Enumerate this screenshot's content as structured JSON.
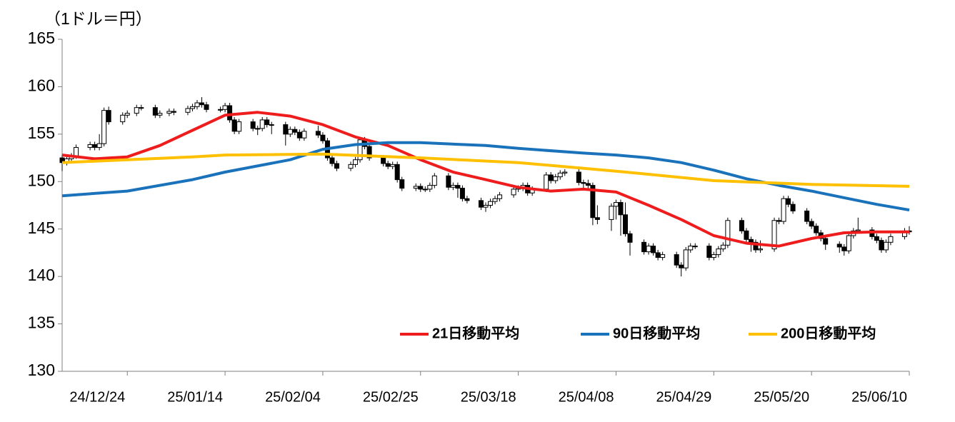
{
  "chart_data": {
    "type": "candlestick",
    "y_label": "（1ドル＝円）",
    "x": [
      "24/12/10",
      "24/12/11",
      "24/12/12",
      "24/12/13",
      "24/12/16",
      "24/12/17",
      "24/12/18",
      "24/12/19",
      "24/12/20",
      "24/12/23",
      "24/12/24",
      "24/12/26",
      "24/12/27",
      "24/12/30",
      "24/12/31",
      "25/01/02",
      "25/01/03",
      "25/01/06",
      "25/01/07",
      "25/01/08",
      "25/01/09",
      "25/01/10",
      "25/01/13",
      "25/01/14",
      "25/01/15",
      "25/01/16",
      "25/01/17",
      "25/01/20",
      "25/01/21",
      "25/01/22",
      "25/01/23",
      "25/01/24",
      "25/01/27",
      "25/01/28",
      "25/01/29",
      "25/01/30",
      "25/01/31",
      "25/02/03",
      "25/02/04",
      "25/02/05",
      "25/02/06",
      "25/02/07",
      "25/02/10",
      "25/02/11",
      "25/02/12",
      "25/02/13",
      "25/02/14",
      "25/02/17",
      "25/02/18",
      "25/02/19",
      "25/02/20",
      "25/02/21",
      "25/02/24",
      "25/02/25",
      "25/02/26",
      "25/02/27",
      "25/02/28",
      "25/03/03",
      "25/03/04",
      "25/03/05",
      "25/03/06",
      "25/03/07",
      "25/03/10",
      "25/03/11",
      "25/03/12",
      "25/03/13",
      "25/03/14",
      "25/03/17",
      "25/03/18",
      "25/03/19",
      "25/03/20",
      "25/03/21",
      "25/03/24",
      "25/03/25",
      "25/03/26",
      "25/03/27",
      "25/03/28",
      "25/03/31",
      "25/04/01",
      "25/04/02",
      "25/04/03",
      "25/04/04",
      "25/04/07",
      "25/04/08",
      "25/04/09",
      "25/04/10",
      "25/04/11",
      "25/04/14",
      "25/04/15",
      "25/04/16",
      "25/04/17",
      "25/04/18",
      "25/04/21",
      "25/04/22",
      "25/04/23",
      "25/04/24",
      "25/04/25",
      "25/04/28",
      "25/04/29",
      "25/04/30",
      "25/05/01",
      "25/05/02",
      "25/05/05",
      "25/05/06",
      "25/05/07",
      "25/05/08",
      "25/05/09",
      "25/05/12",
      "25/05/13",
      "25/05/14",
      "25/05/15",
      "25/05/16",
      "25/05/19",
      "25/05/20",
      "25/05/21",
      "25/05/22",
      "25/05/23",
      "25/05/26",
      "25/05/27",
      "25/05/28",
      "25/05/29",
      "25/05/30",
      "25/06/02",
      "25/06/03",
      "25/06/04",
      "25/06/05",
      "25/06/06",
      "25/06/09",
      "25/06/10"
    ],
    "open": [
      152.5,
      152.0,
      152.4,
      152.7,
      153.6,
      153.9,
      153.6,
      154.0,
      157.5,
      156.3,
      157.0,
      157.2,
      157.8,
      157.8,
      157.0,
      157.2,
      157.4,
      157.3,
      157.7,
      157.9,
      158.3,
      158.1,
      157.6,
      157.6,
      158.0,
      156.5,
      155.3,
      156.3,
      155.6,
      155.6,
      156.5,
      156.0,
      156.0,
      155.0,
      155.5,
      155.2,
      154.6,
      155.3,
      154.9,
      154.3,
      152.5,
      151.9,
      151.4,
      151.8,
      152.3,
      154.4,
      153.7,
      152.5,
      151.9,
      151.6,
      151.8,
      150.2,
      149.3,
      149.5,
      149.2,
      149.2,
      149.6,
      150.6,
      149.4,
      149.6,
      149.3,
      148.2,
      148.0,
      147.3,
      147.5,
      147.9,
      148.2,
      148.6,
      149.2,
      149.3,
      149.6,
      148.8,
      149.2,
      150.7,
      150.1,
      150.5,
      150.9,
      151.0,
      149.9,
      149.8,
      149.6,
      146.2,
      146.0,
      147.4,
      147.8,
      146.5,
      144.5,
      143.6,
      142.6,
      143.2,
      142.5,
      142.0,
      142.3,
      141.2,
      140.9,
      142.8,
      143.2,
      143.2,
      142.0,
      142.3,
      142.9,
      143.3,
      145.9,
      144.8,
      143.9,
      143.6,
      142.8,
      142.9,
      145.9,
      145.8,
      148.2,
      147.6,
      146.9,
      145.8,
      145.3,
      144.6,
      144.0,
      143.4,
      143.1,
      142.7,
      144.3,
      144.8,
      144.9,
      144.2,
      143.8,
      142.8,
      143.6,
      144.2,
      144.8
    ],
    "high": [
      152.8,
      152.7,
      153.0,
      153.9,
      154.2,
      154.2,
      155.0,
      157.8,
      157.9,
      157.3,
      157.5,
      158.1,
      158.1,
      158.1,
      157.5,
      157.7,
      157.7,
      158.0,
      158.2,
      158.6,
      158.9,
      158.4,
      157.9,
      158.3,
      158.3,
      156.8,
      156.6,
      156.6,
      155.9,
      156.8,
      156.8,
      156.3,
      156.3,
      155.8,
      155.8,
      155.5,
      155.6,
      155.9,
      155.2,
      154.6,
      152.8,
      152.2,
      152.1,
      152.6,
      154.7,
      154.7,
      154.0,
      152.8,
      152.2,
      152.1,
      152.1,
      150.5,
      149.8,
      149.8,
      149.5,
      149.9,
      150.9,
      150.9,
      149.9,
      149.9,
      149.6,
      148.5,
      148.3,
      147.8,
      148.2,
      148.5,
      148.9,
      149.5,
      149.6,
      149.9,
      149.9,
      149.5,
      151.0,
      151.0,
      150.8,
      151.2,
      151.3,
      151.3,
      150.2,
      150.2,
      149.9,
      147.5,
      147.7,
      148.1,
      148.1,
      147.8,
      144.8,
      143.9,
      143.5,
      143.5,
      142.8,
      142.6,
      142.6,
      141.5,
      143.1,
      143.5,
      143.5,
      143.5,
      142.6,
      143.2,
      143.6,
      146.2,
      146.2,
      145.1,
      144.2,
      143.9,
      143.8,
      146.2,
      146.2,
      148.5,
      148.5,
      147.9,
      147.2,
      146.1,
      145.6,
      144.9,
      144.3,
      143.7,
      143.4,
      144.6,
      145.1,
      146.2,
      145.2,
      144.5,
      144.1,
      143.9,
      144.5,
      145.1,
      145.3
    ],
    "low": [
      151.1,
      151.7,
      152.1,
      152.4,
      153.3,
      153.3,
      153.3,
      153.7,
      156.0,
      156.0,
      156.7,
      156.9,
      157.5,
      156.7,
      156.7,
      156.9,
      157.0,
      157.0,
      157.4,
      157.6,
      157.8,
      157.3,
      157.3,
      157.3,
      156.2,
      155.0,
      155.0,
      155.3,
      154.9,
      155.3,
      155.7,
      155.0,
      153.8,
      154.7,
      154.9,
      154.3,
      154.3,
      154.6,
      154.0,
      152.2,
      151.6,
      151.1,
      151.1,
      151.5,
      152.0,
      153.4,
      152.2,
      151.6,
      151.3,
      151.3,
      149.9,
      149.0,
      149.0,
      148.9,
      148.9,
      148.9,
      149.3,
      149.1,
      149.1,
      148.3,
      147.9,
      147.7,
      147.0,
      146.8,
      147.2,
      147.6,
      147.9,
      148.3,
      148.9,
      149.0,
      148.5,
      148.5,
      148.9,
      149.8,
      149.8,
      150.2,
      150.6,
      149.6,
      149.2,
      149.3,
      145.4,
      145.5,
      144.8,
      146.0,
      144.3,
      144.2,
      142.2,
      142.3,
      142.3,
      142.2,
      141.7,
      141.7,
      140.9,
      140.0,
      140.6,
      142.5,
      142.9,
      141.7,
      141.7,
      142.0,
      142.6,
      143.0,
      144.5,
      143.6,
      142.6,
      142.5,
      142.5,
      142.6,
      145.5,
      145.5,
      147.3,
      146.6,
      145.5,
      145.0,
      144.3,
      143.7,
      142.8,
      142.5,
      142.2,
      142.4,
      144.0,
      144.5,
      143.9,
      143.5,
      142.5,
      142.5,
      143.3,
      143.9,
      144.4
    ],
    "close": [
      152.0,
      152.4,
      152.7,
      153.6,
      153.9,
      153.6,
      154.0,
      157.5,
      156.3,
      157.0,
      157.2,
      157.8,
      157.8,
      157.0,
      157.2,
      157.4,
      157.3,
      157.7,
      157.9,
      158.3,
      158.1,
      157.6,
      157.6,
      158.0,
      156.5,
      155.3,
      156.3,
      155.6,
      155.6,
      156.5,
      156.0,
      156.0,
      155.0,
      155.5,
      155.2,
      154.6,
      155.3,
      154.9,
      154.3,
      152.5,
      151.9,
      151.4,
      151.8,
      152.3,
      154.4,
      153.7,
      152.5,
      151.9,
      151.6,
      151.8,
      150.2,
      149.3,
      149.5,
      149.2,
      149.2,
      149.6,
      150.6,
      149.4,
      149.6,
      149.3,
      148.2,
      148.0,
      147.3,
      147.5,
      147.9,
      148.2,
      148.6,
      149.2,
      149.3,
      149.6,
      148.8,
      149.2,
      150.7,
      150.1,
      150.5,
      150.9,
      151.0,
      149.9,
      149.8,
      149.6,
      146.2,
      146.0,
      147.4,
      147.8,
      146.5,
      144.5,
      143.6,
      142.6,
      143.2,
      142.5,
      142.0,
      142.3,
      141.2,
      140.9,
      142.8,
      143.2,
      143.2,
      142.0,
      142.3,
      142.9,
      143.3,
      145.9,
      144.8,
      143.9,
      143.6,
      142.8,
      142.9,
      145.9,
      145.8,
      148.2,
      147.6,
      146.9,
      145.8,
      145.3,
      144.6,
      144.0,
      143.4,
      143.1,
      142.7,
      144.3,
      144.8,
      144.9,
      144.2,
      143.8,
      142.8,
      143.6,
      144.2,
      144.8,
      144.7
    ],
    "up_color": "#ffffff",
    "down_color": "#000000",
    "series": [
      {
        "name": "21日移動平均",
        "color": "#ee1c1c",
        "x": [
          "24/12/10",
          "24/12/17",
          "24/12/24",
          "24/12/31",
          "25/01/07",
          "25/01/14",
          "25/01/21",
          "25/01/28",
          "25/02/04",
          "25/02/11",
          "25/02/18",
          "25/02/25",
          "25/03/04",
          "25/03/11",
          "25/03/18",
          "25/03/25",
          "25/04/01",
          "25/04/08",
          "25/04/15",
          "25/04/22",
          "25/04/29",
          "25/05/06",
          "25/05/13",
          "25/05/20",
          "25/05/27",
          "25/06/03",
          "25/06/10"
        ],
        "values": [
          152.8,
          152.4,
          152.6,
          153.8,
          155.4,
          157.0,
          157.3,
          156.9,
          156.0,
          154.7,
          153.8,
          152.3,
          151.0,
          150.2,
          149.4,
          149.0,
          149.2,
          148.9,
          147.5,
          146.0,
          144.3,
          143.5,
          143.2,
          144.0,
          144.6,
          144.7,
          144.7
        ]
      },
      {
        "name": "90日移動平均",
        "color": "#1a72bb",
        "x": [
          "24/12/10",
          "24/12/24",
          "25/01/07",
          "25/01/14",
          "25/01/28",
          "25/02/04",
          "25/02/11",
          "25/02/18",
          "25/02/25",
          "25/03/11",
          "25/03/18",
          "25/04/01",
          "25/04/08",
          "25/04/15",
          "25/04/22",
          "25/04/29",
          "25/05/06",
          "25/05/13",
          "25/05/20",
          "25/05/27",
          "25/06/03",
          "25/06/10"
        ],
        "values": [
          148.5,
          149.0,
          150.2,
          151.0,
          152.3,
          153.4,
          153.9,
          154.1,
          154.1,
          153.8,
          153.5,
          153.0,
          152.8,
          152.5,
          152.0,
          151.2,
          150.3,
          149.6,
          149.0,
          148.3,
          147.6,
          147.0
        ]
      },
      {
        "name": "200日移動平均",
        "color": "#ffc000",
        "x": [
          "24/12/10",
          "24/12/24",
          "25/01/07",
          "25/01/14",
          "25/02/04",
          "25/02/25",
          "25/03/18",
          "25/04/08",
          "25/04/29",
          "25/05/20",
          "25/06/10"
        ],
        "values": [
          152.0,
          152.3,
          152.6,
          152.8,
          152.9,
          152.5,
          152.0,
          151.1,
          150.1,
          149.7,
          149.5
        ]
      }
    ],
    "xlim": [
      "24/12/10",
      "25/06/10"
    ],
    "xticks": [
      "24/12/24",
      "25/01/14",
      "25/02/04",
      "25/02/25",
      "25/03/18",
      "25/04/08",
      "25/04/29",
      "25/05/20",
      "25/06/10"
    ],
    "ylim": [
      130,
      165
    ],
    "yticks": [
      130,
      135,
      140,
      145,
      150,
      155,
      160,
      165
    ],
    "legend": "lower right"
  }
}
